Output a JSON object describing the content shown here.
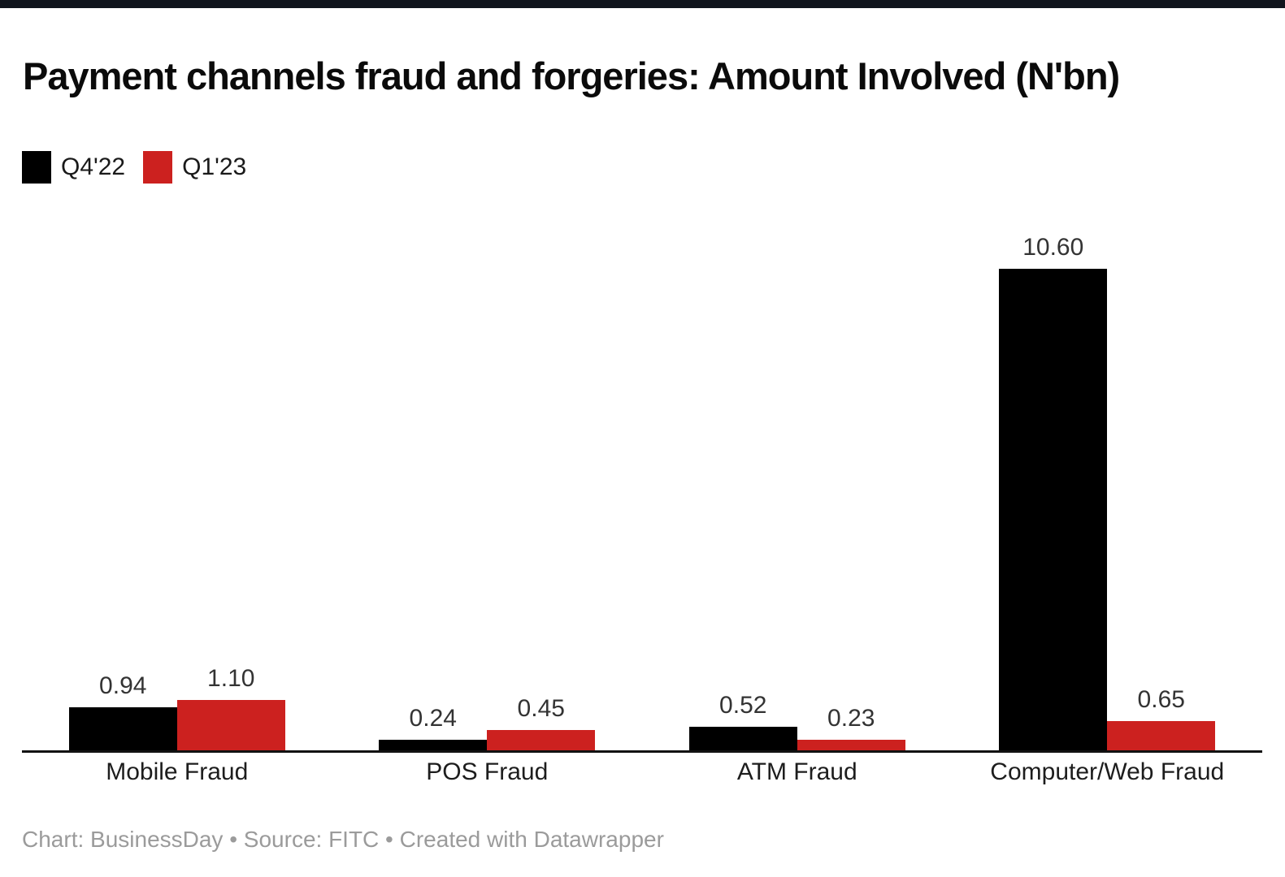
{
  "page": {
    "background": "#ffffff",
    "top_bar_color": "#10151d"
  },
  "chart_data": {
    "type": "bar",
    "title": "Payment channels fraud and forgeries: Amount Involved (N'bn)",
    "categories": [
      "Mobile Fraud",
      "POS Fraud",
      "ATM Fraud",
      "Computer/Web Fraud"
    ],
    "series": [
      {
        "name": "Q4'22",
        "color": "#000000",
        "values": [
          0.94,
          0.24,
          0.52,
          10.6
        ],
        "labels": [
          "0.94",
          "0.24",
          "0.52",
          "10.60"
        ]
      },
      {
        "name": "Q1'23",
        "color": "#cc211f",
        "values": [
          1.1,
          0.45,
          0.23,
          0.65
        ],
        "labels": [
          "1.10",
          "0.45",
          "0.23",
          "0.65"
        ]
      }
    ],
    "xlabel": "",
    "ylabel": "",
    "ylim": [
      0,
      10.6
    ],
    "grid": false,
    "value_labels_shown": true,
    "legend_position": "top-left",
    "axis_line_color": "#121212"
  },
  "footer": {
    "text": "Chart: BusinessDay • Source: FITC • Created with Datawrapper"
  }
}
